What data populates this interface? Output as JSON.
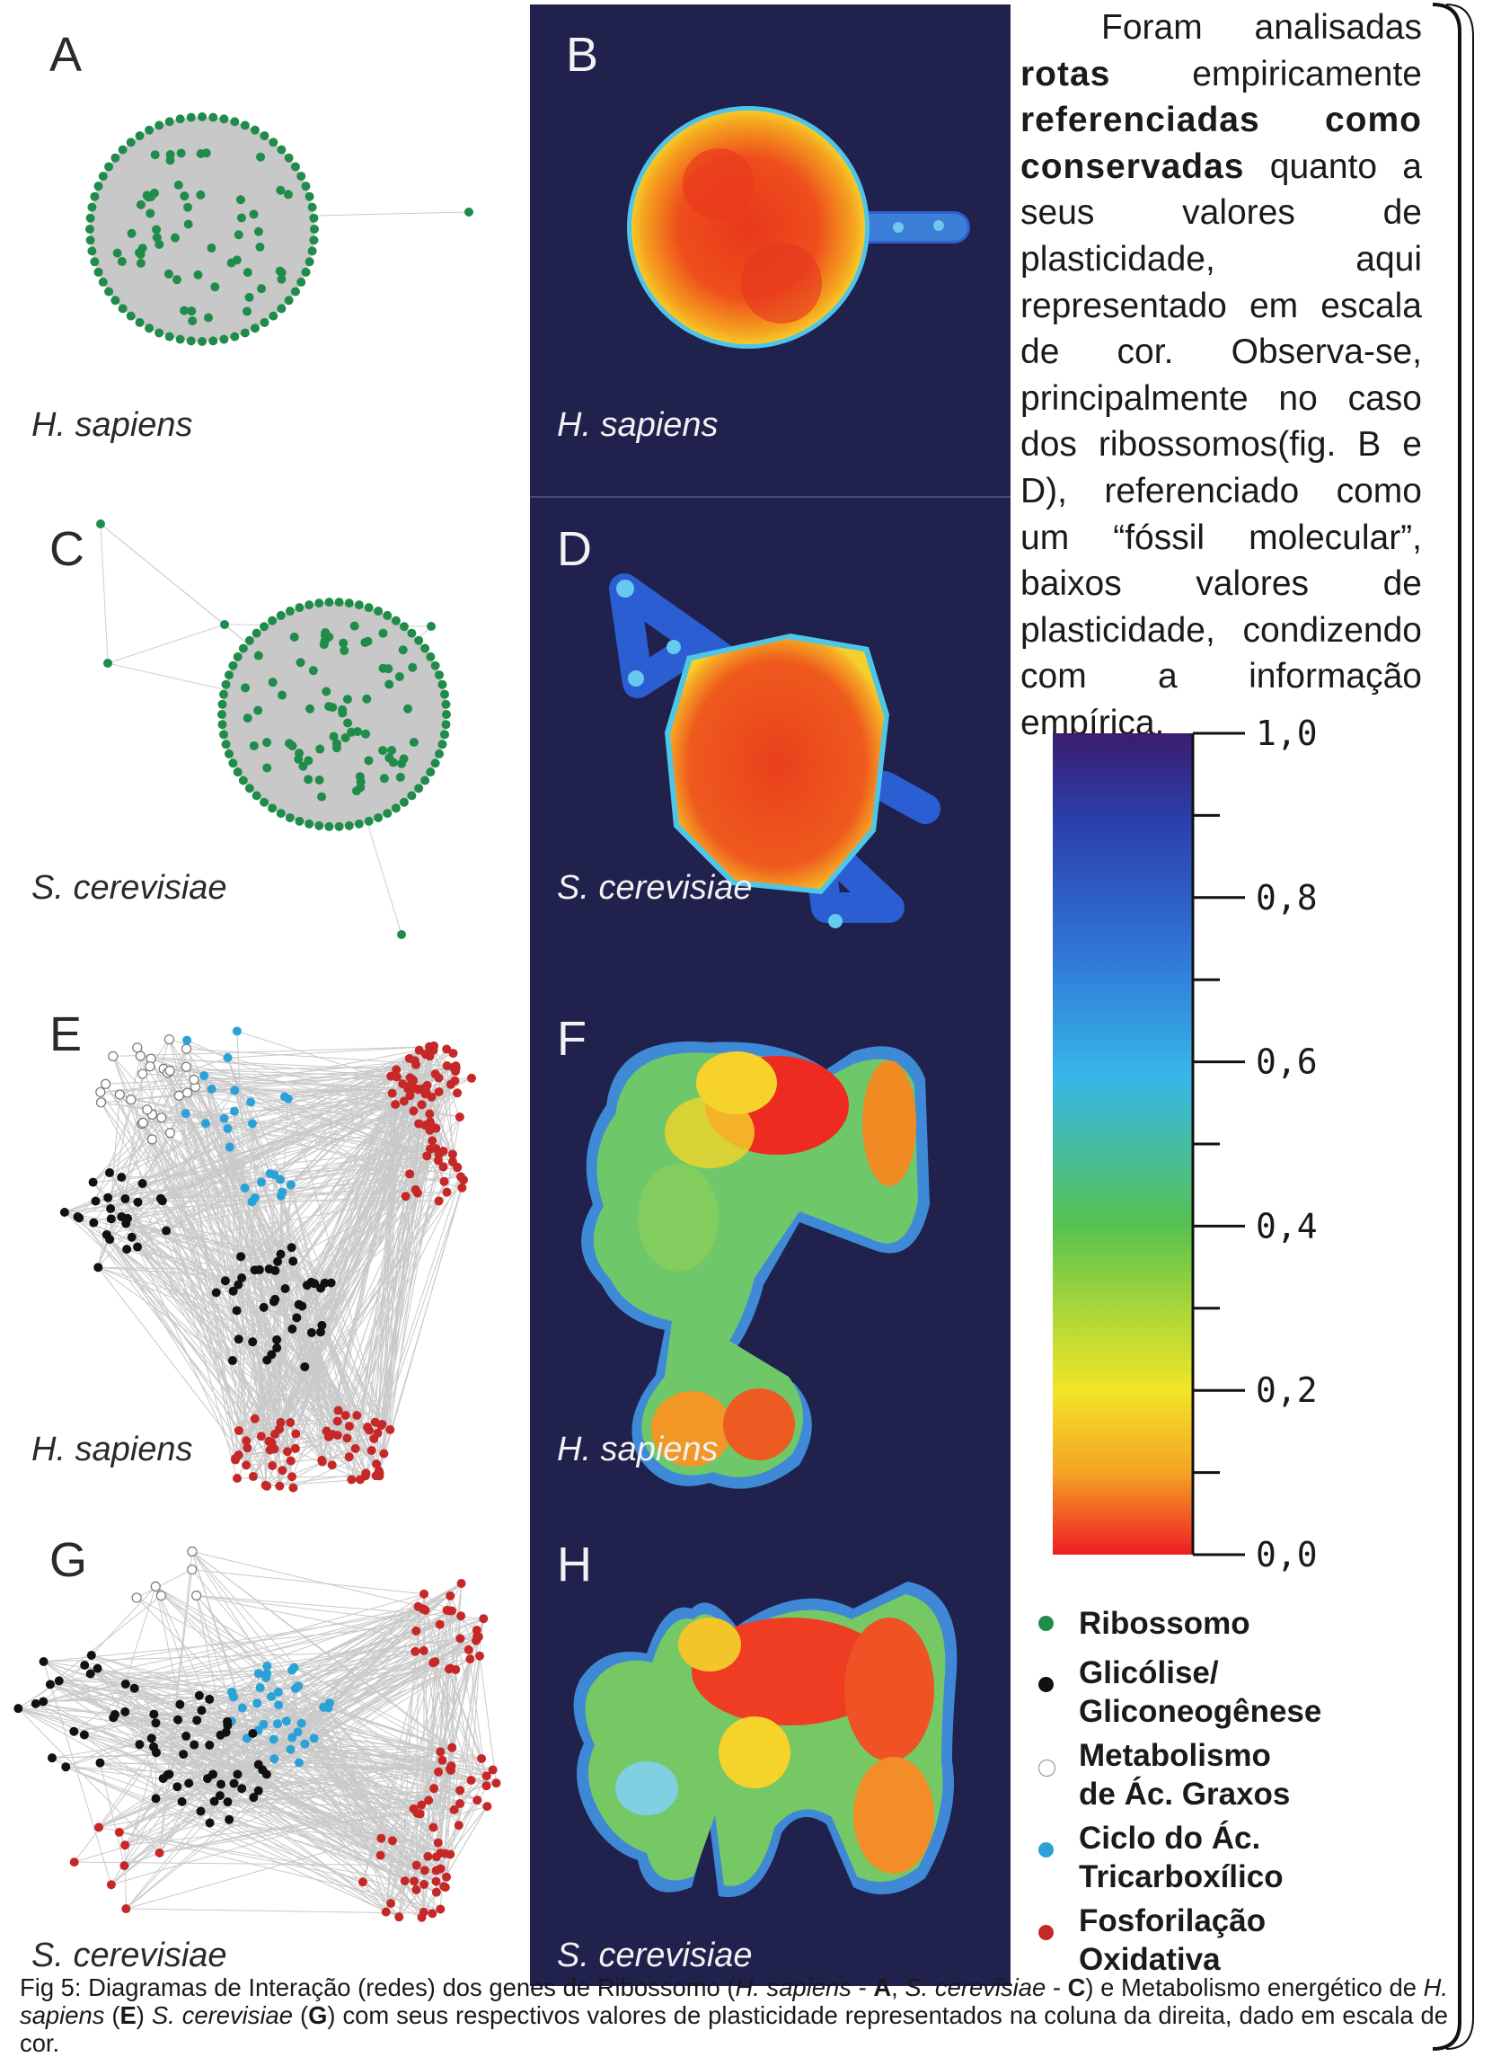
{
  "panels": {
    "A": {
      "letter": "A",
      "species": "H. sapiens"
    },
    "B": {
      "letter": "B",
      "species": "H. sapiens"
    },
    "C": {
      "letter": "C",
      "species": "S. cerevisiae"
    },
    "D": {
      "letter": "D",
      "species": "S. cerevisiae"
    },
    "E": {
      "letter": "E",
      "species": "H. sapiens"
    },
    "F": {
      "letter": "F",
      "species": "H. sapiens"
    },
    "G": {
      "letter": "G",
      "species": "S. cerevisiae"
    },
    "H": {
      "letter": "H",
      "species": "S. cerevisiae"
    }
  },
  "paragraph": {
    "p1": "Foram analisadas ",
    "b1": "rotas",
    "p2": " empiricamente ",
    "b2": "referenciadas como conservadas",
    "p3": " quanto a seus valores de plasticidade, aqui representado em escala de cor. Observa-se, principalmente no caso dos ribossomos(fig. B e D), referenciado como um “fóssil molecular”, baixos valores de plasticidade, condizendo com a informação empírica."
  },
  "color_scale": {
    "labels": [
      "1,0",
      "0,8",
      "0,6",
      "0,4",
      "0,2",
      "0,0"
    ],
    "colors": [
      "#3a1d6e",
      "#2f54c8",
      "#37b7e8",
      "#57c24f",
      "#f2e429",
      "#ee1c25"
    ]
  },
  "legend": [
    {
      "label": "Ribossomo",
      "color": "#1f8c4a"
    },
    {
      "label": "Glicólise/ Gliconeogênese",
      "color": "#111111"
    },
    {
      "label": "Metabolismo de Ác. Graxos",
      "color": "#ffffff"
    },
    {
      "label": "Ciclo do Ác. Tricarboxílico",
      "color": "#2aa2d8"
    },
    {
      "label": "Fosforilação Oxidativa",
      "color": "#c62828"
    }
  ],
  "caption": {
    "t1": "Fig 5: Diagramas de Interação (redes) dos genes de Ribossomo (",
    "i1": "H. sapiens",
    "t2": " - ",
    "b1": "A",
    "t3": ", ",
    "i2": "S. cerevisiae",
    "t4": " - ",
    "b2": "C",
    "t5": ") e Metabolismo energético de ",
    "i3": "H. sapiens",
    "t6": " (",
    "b3": "E",
    "t7": ") ",
    "i4": "S. cerevisiae",
    "t8": " (",
    "b4": "G",
    "t9": ") com seus respectivos valores de plasticidade representados na coluna da direita, dado em escala de cor."
  }
}
